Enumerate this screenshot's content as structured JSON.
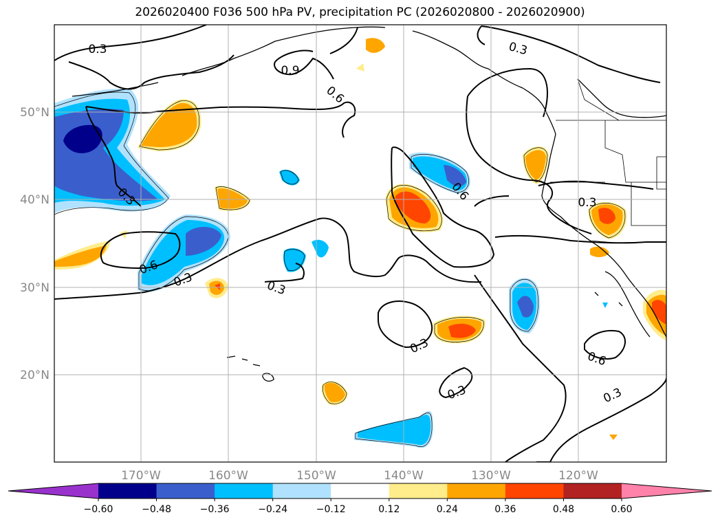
{
  "title": "2026020400 F036 500 hPa PV, precipitation PC (2026020800 - 2026020900)",
  "map": {
    "lat_labels": [
      "50°N",
      "40°N",
      "30°N",
      "20°N"
    ],
    "lon_labels": [
      "170°W",
      "160°W",
      "150°W",
      "140°W",
      "130°W",
      "120°W"
    ],
    "contour_labels": [
      "0.3",
      "0.9",
      "0.6",
      "0.3",
      "0.3",
      "0.6",
      "0.3",
      "0.3",
      "0.6",
      "0.3",
      "0.3",
      "0.6",
      "0.3",
      "0.3"
    ],
    "grid": true
  },
  "colorbar": {
    "ticks": [
      "−0.60",
      "−0.48",
      "−0.36",
      "−0.24",
      "−0.12",
      "0.12",
      "0.24",
      "0.36",
      "0.48",
      "0.60"
    ],
    "colors": [
      "#9932cc",
      "#00008b",
      "#3a5fcd",
      "#00bfff",
      "#b0e2ff",
      "#ffffff",
      "#ffec8b",
      "#ffa500",
      "#ff4500",
      "#b22222",
      "#ff82ab"
    ]
  }
}
